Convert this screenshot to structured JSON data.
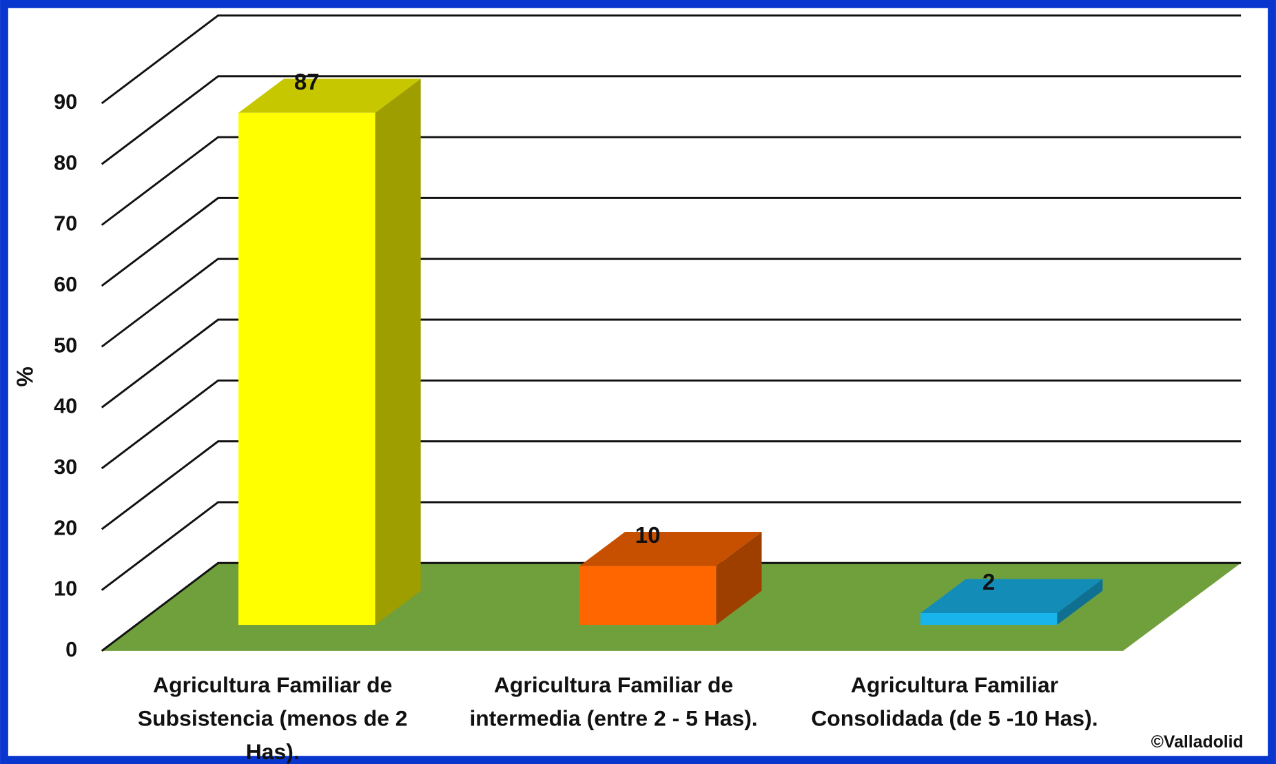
{
  "chart_data": {
    "type": "bar3d",
    "ylabel": "%",
    "categories": [
      "Agricultura  Familiar de Subsistencia  (menos de 2 Has).",
      "Agricultura  Familiar de intermedia  (entre  2 - 5 Has).",
      "Agricultura Familiar Consolidada (de 5 -10 Has)."
    ],
    "values": [
      87,
      10,
      2
    ],
    "colors": [
      "#ffff00",
      "#ff6600",
      "#1ab4ec"
    ],
    "floor_color": "#70a03c",
    "ylim": [
      0,
      90
    ],
    "yticks": [
      0,
      10,
      20,
      30,
      40,
      50,
      60,
      70,
      80,
      90
    ],
    "grid": true,
    "credit": "©Valladolid"
  }
}
